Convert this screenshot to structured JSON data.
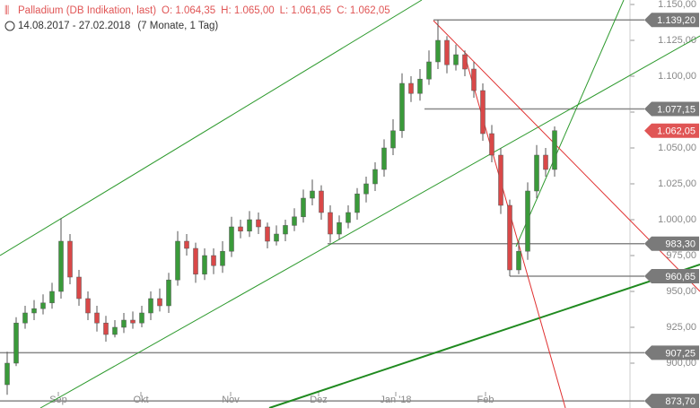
{
  "chart_data": {
    "type": "candlestick",
    "title": "Palladium (DB Indikation, last)",
    "ohlc_text": [
      "O: 1.064,35",
      "H: 1.065,00",
      "L: 1.061,65",
      "C: 1.062,05"
    ],
    "date_range": "14.08.2017 - 27.02.2018",
    "span": "(7 Monate, 1 Tag)",
    "up_color": "#3a9a3a",
    "down_color": "#d94848",
    "series": [
      {
        "open": [
          885,
          900,
          928,
          935,
          938,
          942,
          950,
          985,
          960,
          945,
          935,
          928,
          920,
          925,
          930,
          928,
          935,
          945,
          940,
          958,
          985,
          980,
          962,
          975,
          968,
          978,
          995,
          992,
          1000,
          995,
          985,
          990,
          996,
          1002,
          1015,
          1020,
          1005,
          990,
          998,
          1005,
          1018,
          1025,
          1035,
          1050,
          1062,
          1095,
          1088,
          1098,
          1110,
          1125,
          1108,
          1115,
          1105,
          1090,
          1060,
          1045,
          1010,
          965,
          978,
          1020,
          1045,
          1035
        ],
        "high": [
          908,
          932,
          940,
          944,
          948,
          956,
          1001,
          990,
          965,
          950,
          940,
          933,
          930,
          935,
          936,
          940,
          950,
          952,
          963,
          992,
          990,
          984,
          980,
          980,
          985,
          1002,
          1000,
          1006,
          1005,
          998,
          996,
          1000,
          1008,
          1021,
          1028,
          1024,
          1010,
          1003,
          1010,
          1022,
          1030,
          1040,
          1056,
          1070,
          1102,
          1100,
          1105,
          1118,
          1139.2,
          1128,
          1122,
          1118,
          1110,
          1095,
          1066,
          1050,
          1014,
          985,
          1026,
          1052,
          1050,
          1065
        ],
        "low": [
          878,
          898,
          924,
          930,
          934,
          938,
          945,
          955,
          940,
          930,
          922,
          915,
          918,
          921,
          924,
          925,
          930,
          936,
          935,
          954,
          975,
          956,
          958,
          962,
          963,
          974,
          987,
          988,
          990,
          980,
          982,
          985,
          992,
          998,
          1010,
          1000,
          984,
          986,
          994,
          1000,
          1012,
          1020,
          1030,
          1045,
          1057,
          1082,
          1083,
          1094,
          1105,
          1102,
          1104,
          1100,
          1085,
          1055,
          1040,
          1004,
          960.65,
          962,
          972,
          1015,
          1030,
          1030
        ],
        "close": [
          900,
          928,
          935,
          938,
          942,
          950,
          985,
          960,
          945,
          935,
          928,
          920,
          925,
          930,
          928,
          935,
          945,
          940,
          958,
          985,
          980,
          962,
          975,
          968,
          978,
          995,
          992,
          1000,
          995,
          985,
          990,
          996,
          1002,
          1015,
          1020,
          1005,
          990,
          998,
          1005,
          1018,
          1025,
          1035,
          1050,
          1062,
          1095,
          1088,
          1098,
          1110,
          1125,
          1108,
          1115,
          1105,
          1090,
          1060,
          1045,
          1010,
          965,
          978,
          1020,
          1045,
          1035,
          1062.05
        ]
      }
    ],
    "xticks": [
      {
        "value": 5.7,
        "label": "Sep"
      },
      {
        "value": 14.9,
        "label": "Okt"
      },
      {
        "value": 24.9,
        "label": "Nov"
      },
      {
        "value": 34.7,
        "label": "Dez"
      },
      {
        "value": 43.3,
        "label": "Jan '18"
      },
      {
        "value": 53.3,
        "label": "Feb"
      }
    ],
    "ylim": [
      868.75,
      1153.125
    ],
    "yticks": [
      {
        "value": 900,
        "label": "900,00"
      },
      {
        "value": 925,
        "label": "925,00"
      },
      {
        "value": 950,
        "label": "950,00"
      },
      {
        "value": 975,
        "label": "975,00"
      },
      {
        "value": 1000,
        "label": "1.000,00"
      },
      {
        "value": 1025,
        "label": "1.025,00"
      },
      {
        "value": 1050,
        "label": "1.050,00"
      },
      {
        "value": 1075,
        "label": "1.075,00"
      },
      {
        "value": 1100,
        "label": "1.100,00"
      },
      {
        "value": 1125,
        "label": "1.125,00"
      },
      {
        "value": 1150,
        "label": "1.150,00"
      }
    ],
    "levels": [
      {
        "value": 1139.2,
        "label": "1.139,20",
        "color": "#7a7a7a"
      },
      {
        "value": 1077.15,
        "label": "1.077,15",
        "color": "#7a7a7a"
      },
      {
        "value": 1062.05,
        "label": "1.062,05",
        "color": "#e05555"
      },
      {
        "value": 983.3,
        "label": "983,30",
        "color": "#7a7a7a"
      },
      {
        "value": 960.65,
        "label": "960,65",
        "color": "#7a7a7a"
      },
      {
        "value": 907.25,
        "label": "907,25",
        "color": "#7a7a7a"
      },
      {
        "value": 873.7,
        "label": "873,70",
        "color": "#7a7a7a"
      }
    ]
  }
}
